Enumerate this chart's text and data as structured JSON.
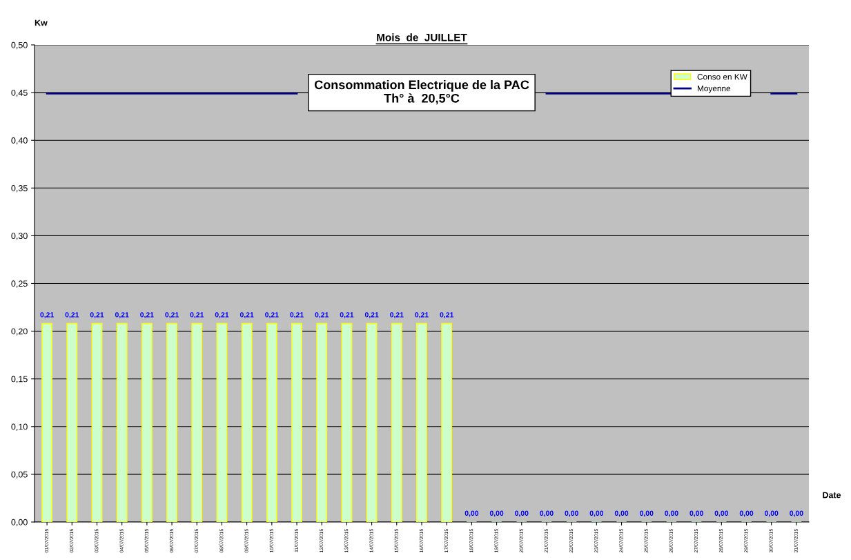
{
  "chart_data": {
    "type": "bar",
    "title": "Mois  de  JUILLET",
    "subtitle": "Consommation Electrique de la PAC\nTh° à  20,5°C",
    "xlabel": "Date",
    "ylabel": "Kw",
    "categories": [
      "01/07/2015",
      "02/07/2015",
      "03/07/2015",
      "04/07/2015",
      "05/07/2015",
      "06/07/2015",
      "07/07/2015",
      "08/07/2015",
      "09/07/2015",
      "10/07/2015",
      "11/07/2015",
      "12/07/2015",
      "13/07/2015",
      "14/07/2015",
      "15/07/2015",
      "16/07/2015",
      "17/07/2015",
      "18/07/2015",
      "19/07/2015",
      "20/07/2015",
      "21/07/2015",
      "22/07/2015",
      "23/07/2015",
      "24/07/2015",
      "25/07/2015",
      "26/07/2015",
      "27/07/2015",
      "28/07/2015",
      "29/07/2015",
      "30/07/2015",
      "31/07/2015"
    ],
    "series": [
      {
        "name": "Conso en KW",
        "color": "#ccffcc",
        "values": [
          0.208,
          0.208,
          0.208,
          0.208,
          0.208,
          0.208,
          0.208,
          0.208,
          0.208,
          0.208,
          0.208,
          0.208,
          0.208,
          0.208,
          0.208,
          0.208,
          0.208,
          0,
          0,
          0,
          0,
          0,
          0,
          0,
          0,
          0,
          0,
          0,
          0,
          0,
          0
        ],
        "value_labels": [
          "0,21",
          "0,21",
          "0,21",
          "0,21",
          "0,21",
          "0,21",
          "0,21",
          "0,21",
          "0,21",
          "0,21",
          "0,21",
          "0,21",
          "0,21",
          "0,21",
          "0,21",
          "0,21",
          "0,21",
          "0,00",
          "0,00",
          "0,00",
          "0,00",
          "0,00",
          "0,00",
          "0,00",
          "0,00",
          "0,00",
          "0,00",
          "0,00",
          "0,00",
          "0,00",
          "0,00"
        ]
      },
      {
        "name": "Moyenne",
        "type": "line",
        "color": "#000080",
        "values": [
          0.449,
          0.449,
          0.449,
          0.449,
          0.449,
          0.449,
          0.449,
          0.449,
          0.449,
          0.449,
          0.449,
          null,
          null,
          null,
          null,
          null,
          null,
          null,
          null,
          null,
          0.449,
          0.449,
          0.449,
          0.449,
          0.449,
          0.449,
          null,
          null,
          null,
          0.449,
          0.449
        ]
      }
    ],
    "ylim": [
      0,
      0.5
    ],
    "yticks": [
      {
        "value": 0,
        "label": "0,00"
      },
      {
        "value": 0.05,
        "label": "0,05"
      },
      {
        "value": 0.1,
        "label": "0,10"
      },
      {
        "value": 0.15,
        "label": "0,15"
      },
      {
        "value": 0.2,
        "label": "0,20"
      },
      {
        "value": 0.25,
        "label": "0,25"
      },
      {
        "value": 0.3,
        "label": "0,30"
      },
      {
        "value": 0.35,
        "label": "0,35"
      },
      {
        "value": 0.4,
        "label": "0,40"
      },
      {
        "value": 0.45,
        "label": "0,45"
      },
      {
        "value": 0.5,
        "label": "0,50"
      }
    ],
    "grid": "y",
    "legend": "top right",
    "marker": "none",
    "line_style": "solid"
  }
}
